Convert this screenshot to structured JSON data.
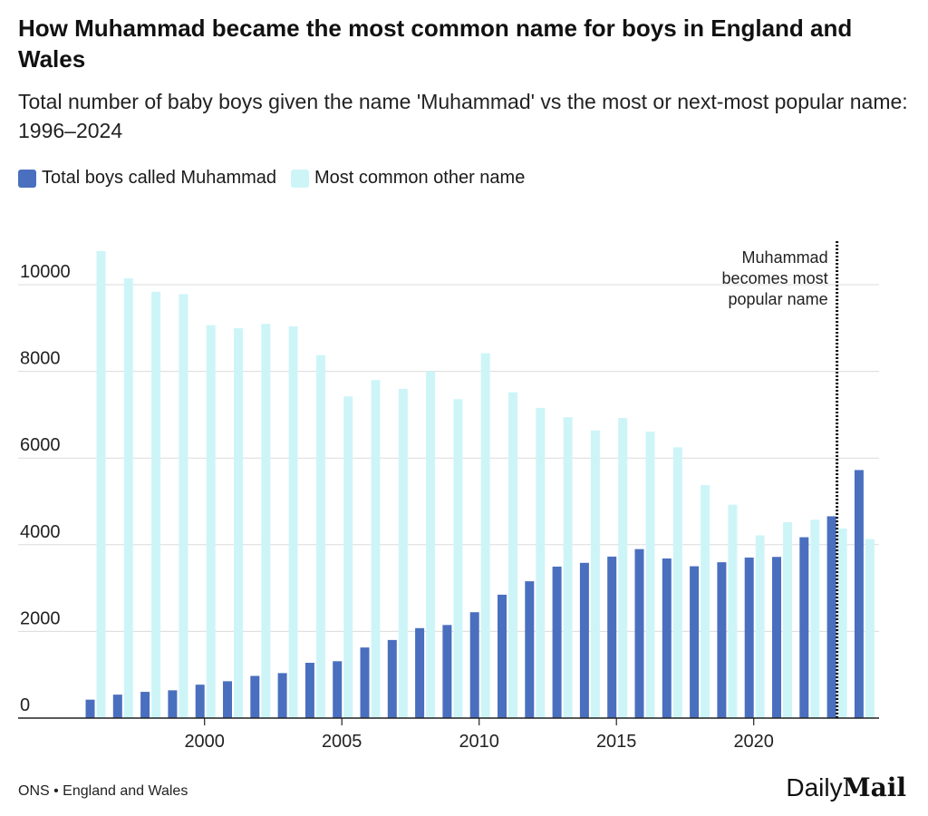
{
  "title": "How Muhammad became the most common name for boys in England and Wales",
  "subtitle": "Total number of baby boys given the name 'Muhammad' vs the most or next-most popular name: 1996–2024",
  "footer": {
    "source": "ONS • England and Wales",
    "logo": "Daily Mail"
  },
  "colors": {
    "muhammad": "#4a6fbf",
    "other": "#cdf5f8"
  },
  "chart_data": {
    "type": "bar",
    "title": "How Muhammad became the most common name for boys in England and Wales",
    "xlabel": "",
    "ylabel": "",
    "ylim": [
      0,
      11000
    ],
    "yticks": [
      0,
      2000,
      4000,
      6000,
      8000,
      10000
    ],
    "xticks": [
      2000,
      2005,
      2010,
      2015,
      2020
    ],
    "grid": true,
    "legend": "top-left",
    "categories": [
      1996,
      1997,
      1998,
      1999,
      2000,
      2001,
      2002,
      2003,
      2004,
      2005,
      2006,
      2007,
      2008,
      2009,
      2010,
      2011,
      2012,
      2013,
      2014,
      2015,
      2016,
      2017,
      2018,
      2019,
      2020,
      2021,
      2022,
      2023,
      2024
    ],
    "series": [
      {
        "name": "Total boys called Muhammad",
        "values": [
          425,
          541,
          605,
          641,
          771,
          850,
          973,
          1038,
          1276,
          1312,
          1629,
          1802,
          2076,
          2148,
          2443,
          2847,
          3157,
          3495,
          3582,
          3726,
          3899,
          3683,
          3503,
          3596,
          3704,
          3719,
          4173,
          4656,
          5723
        ]
      },
      {
        "name": "Most common other name",
        "values": [
          10775,
          10148,
          9838,
          9780,
          9067,
          8995,
          9096,
          9038,
          8375,
          7423,
          7798,
          7596,
          8000,
          7359,
          8418,
          7517,
          7157,
          6941,
          6638,
          6926,
          6609,
          6249,
          5377,
          4923,
          4216,
          4519,
          4577,
          4375,
          4130
        ]
      }
    ],
    "annotation": {
      "year": 2023,
      "lines": [
        "Muhammad",
        "becomes most",
        "popular name"
      ]
    }
  }
}
